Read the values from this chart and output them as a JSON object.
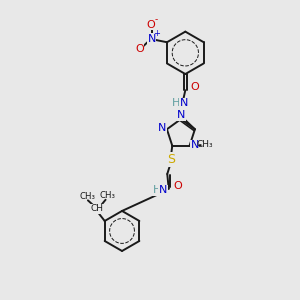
{
  "bg_color": "#e8e8e8",
  "bond_color": "#1a1a1a",
  "bond_width": 1.4,
  "figsize": [
    3.0,
    3.0
  ],
  "dpi": 100,
  "N_col": "#0000cc",
  "O_col": "#cc0000",
  "S_col": "#ccaa00",
  "C_col": "#1a1a1a",
  "H_col": "#5f9ea0",
  "xlim": [
    0,
    10
  ],
  "ylim": [
    0,
    10
  ]
}
